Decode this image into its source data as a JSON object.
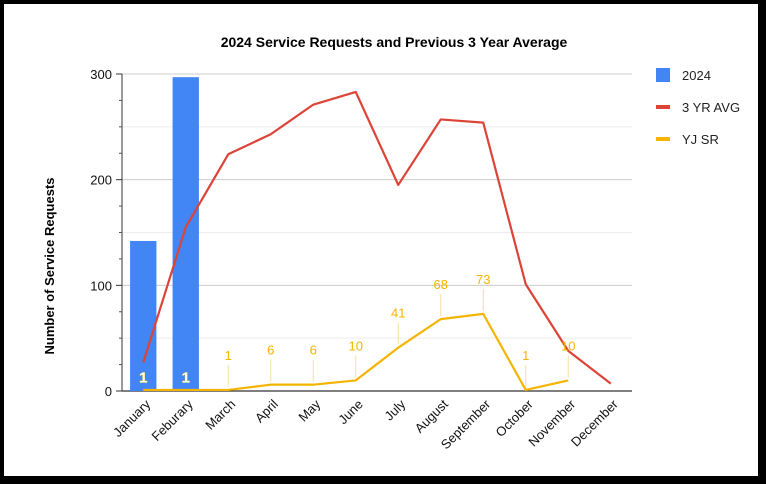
{
  "chart_data": {
    "type": "bar",
    "title": "2024 Service Requests and Previous 3 Year Average",
    "xlabel": "",
    "ylabel": "Number of Service Requests",
    "ylim": [
      0,
      300
    ],
    "yticks": [
      0,
      100,
      200,
      300
    ],
    "grid": true,
    "legend_position": "top-right",
    "categories": [
      "January",
      "Feburary",
      "March",
      "April",
      "May",
      "June",
      "July",
      "August",
      "September",
      "October",
      "November",
      "December"
    ],
    "series": [
      {
        "name": "2024",
        "type": "bar",
        "color": "#4285F4",
        "values": [
          142,
          297,
          null,
          null,
          null,
          null,
          null,
          null,
          null,
          null,
          null,
          null
        ],
        "labels": [
          "1",
          "1",
          null,
          null,
          null,
          null,
          null,
          null,
          null,
          null,
          null,
          null
        ]
      },
      {
        "name": "3 YR AVG",
        "type": "line",
        "color": "#DB4437",
        "values": [
          27,
          155,
          224,
          243,
          271,
          283,
          195,
          257,
          254,
          101,
          38,
          7
        ]
      },
      {
        "name": "YJ SR",
        "type": "line",
        "color": "#F4B400",
        "values": [
          1,
          1,
          1,
          6,
          6,
          10,
          41,
          68,
          73,
          1,
          10,
          null
        ],
        "labels": [
          null,
          null,
          "1",
          "6",
          "6",
          "10",
          "41",
          "68",
          "73",
          "1",
          "10",
          null
        ]
      }
    ]
  }
}
